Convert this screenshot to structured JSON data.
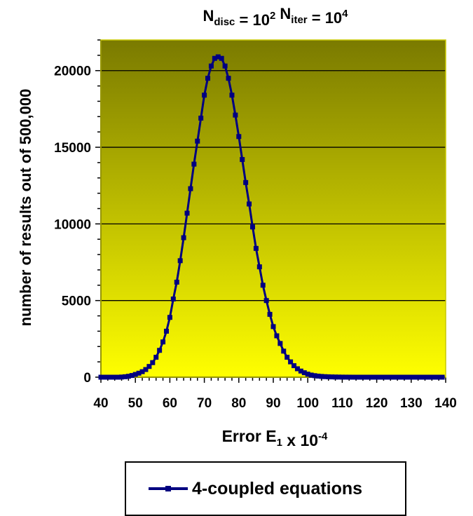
{
  "chart_data": {
    "type": "line",
    "title": {
      "parts": [
        {
          "text": "N",
          "sub": "disc"
        },
        {
          "text": " = 10",
          "sup": "2"
        },
        {
          "text": " N",
          "sub": "iter"
        },
        {
          "text": " = 10",
          "sup": "4"
        }
      ]
    },
    "xlabel": {
      "parts": [
        {
          "text": "Error E",
          "sub": "1"
        },
        {
          "text": " x 10",
          "sup": "-4"
        }
      ]
    },
    "ylabel": "number of results out of 500,000",
    "xlim": [
      40,
      140
    ],
    "ylim": [
      0,
      22000
    ],
    "xticks": [
      "40",
      "50",
      "60",
      "70",
      "80",
      "90",
      "100",
      "110",
      "120",
      "130",
      "140"
    ],
    "yticks": [
      "0",
      "5000",
      "10000",
      "15000",
      "20000"
    ],
    "grid": "horizontal",
    "legend_position": "bottom",
    "colors": {
      "series": "#000080",
      "bg_top": "#7a7a00",
      "bg_bottom": "#ffff00",
      "grid": "#000000"
    },
    "series": [
      {
        "name": "4-coupled equations",
        "x": [
          40,
          41,
          42,
          43,
          44,
          45,
          46,
          47,
          48,
          49,
          50,
          51,
          52,
          53,
          54,
          55,
          56,
          57,
          58,
          59,
          60,
          61,
          62,
          63,
          64,
          65,
          66,
          67,
          68,
          69,
          70,
          71,
          72,
          73,
          74,
          75,
          76,
          77,
          78,
          79,
          80,
          81,
          82,
          83,
          84,
          85,
          86,
          87,
          88,
          89,
          90,
          91,
          92,
          93,
          94,
          95,
          96,
          97,
          98,
          99,
          100,
          101,
          102,
          103,
          104,
          105,
          106,
          107,
          108,
          109,
          110,
          111,
          112,
          113,
          114,
          115,
          116,
          117,
          118,
          119,
          120,
          121,
          122,
          123,
          124,
          125,
          126,
          127,
          128,
          129,
          130,
          131,
          132,
          133,
          134,
          135,
          136,
          137,
          138,
          139
        ],
        "values": [
          0,
          0,
          0,
          0,
          0,
          0,
          10,
          30,
          60,
          110,
          180,
          260,
          360,
          500,
          700,
          950,
          1300,
          1750,
          2300,
          3000,
          3900,
          5100,
          6200,
          7600,
          9100,
          10700,
          12300,
          13900,
          15400,
          16900,
          18400,
          19500,
          20300,
          20800,
          20900,
          20800,
          20300,
          19500,
          18400,
          17100,
          15700,
          14200,
          12700,
          11300,
          9800,
          8400,
          7200,
          6000,
          5000,
          4100,
          3300,
          2700,
          2200,
          1700,
          1300,
          1000,
          750,
          550,
          400,
          290,
          200,
          140,
          100,
          70,
          50,
          35,
          25,
          18,
          12,
          8,
          5,
          3,
          2,
          1,
          0,
          0,
          0,
          0,
          0,
          0,
          0,
          0,
          0,
          0,
          0,
          0,
          0,
          0,
          0,
          0,
          0,
          0,
          0,
          0,
          0,
          0,
          0,
          0,
          0,
          0
        ]
      }
    ]
  }
}
